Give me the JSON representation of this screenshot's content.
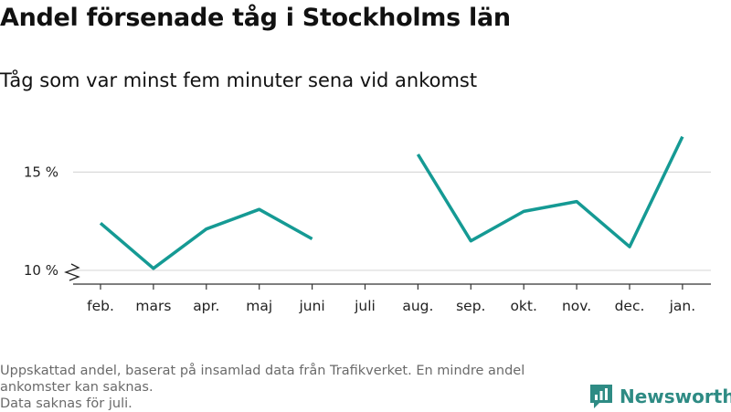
{
  "title": "Andel försenade tåg i Stockholms län",
  "subtitle": "Tåg som var minst fem minuter sena vid ankomst",
  "footnote": {
    "line1": "Uppskattad andel, baserat på insamlad data från Trafikverket. En mindre andel",
    "line2": "ankomster kan saknas.",
    "line3": "Data saknas för juli."
  },
  "brand": {
    "name": "Newsworthy",
    "color": "#2e8b84"
  },
  "chart_data": {
    "type": "line",
    "title": "Andel försenade tåg i Stockholms län",
    "subtitle": "Tåg som var minst fem minuter sena vid ankomst",
    "categories": [
      "feb.",
      "mars",
      "apr.",
      "maj",
      "juni",
      "juli",
      "aug.",
      "sep.",
      "okt.",
      "nov.",
      "dec.",
      "jan."
    ],
    "values": [
      12.4,
      10.1,
      12.1,
      13.1,
      11.6,
      null,
      15.9,
      11.5,
      13.0,
      13.5,
      11.2,
      16.8
    ],
    "y_ticks": [
      10,
      15
    ],
    "y_tick_labels": [
      "10 %",
      "15 %"
    ],
    "ylim": [
      9.3,
      17.2
    ],
    "y_axis_break": true,
    "grid": true,
    "line_color": "#159a94",
    "xlabel": "",
    "ylabel": ""
  }
}
